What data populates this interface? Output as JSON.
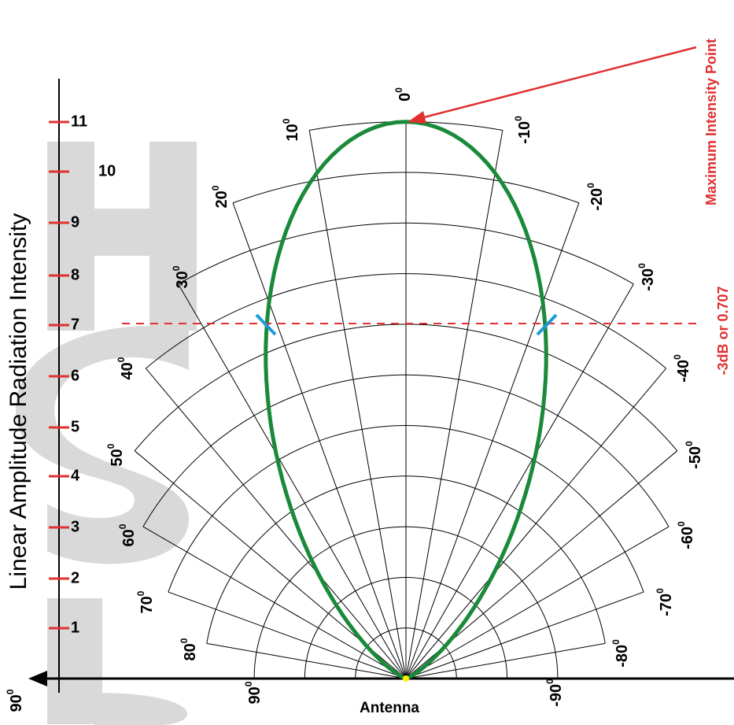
{
  "axis": {
    "title": "Linear Amplitude Radiation Intensity",
    "ticks": [
      "1",
      "2",
      "3",
      "4",
      "5",
      "6",
      "7",
      "8",
      "9",
      "10",
      "11"
    ]
  },
  "angle_labels": [
    {
      "number": "0",
      "sup": "0"
    },
    {
      "number": "10",
      "sup": "0"
    },
    {
      "number": "-10",
      "sup": "0"
    },
    {
      "number": "20",
      "sup": "0"
    },
    {
      "number": "-20",
      "sup": "0"
    },
    {
      "number": "30",
      "sup": "0"
    },
    {
      "number": "-30",
      "sup": "0"
    },
    {
      "number": "40",
      "sup": "0"
    },
    {
      "number": "-40",
      "sup": "0"
    },
    {
      "number": "50",
      "sup": "0"
    },
    {
      "number": "-50",
      "sup": "0"
    },
    {
      "number": "60",
      "sup": "0"
    },
    {
      "number": "-60",
      "sup": "0"
    },
    {
      "number": "70",
      "sup": "0"
    },
    {
      "number": "-70",
      "sup": "0"
    },
    {
      "number": "80",
      "sup": "0"
    },
    {
      "number": "-80",
      "sup": "0"
    },
    {
      "number": "90",
      "sup": "0"
    },
    {
      "number": "-90",
      "sup": "0"
    }
  ],
  "corner_label": {
    "number": "90",
    "sup": "0"
  },
  "antenna_label": "Antenna",
  "max_point_label": "Maximum Intensity Point",
  "threshold_label": "-3dB or 0.707"
}
